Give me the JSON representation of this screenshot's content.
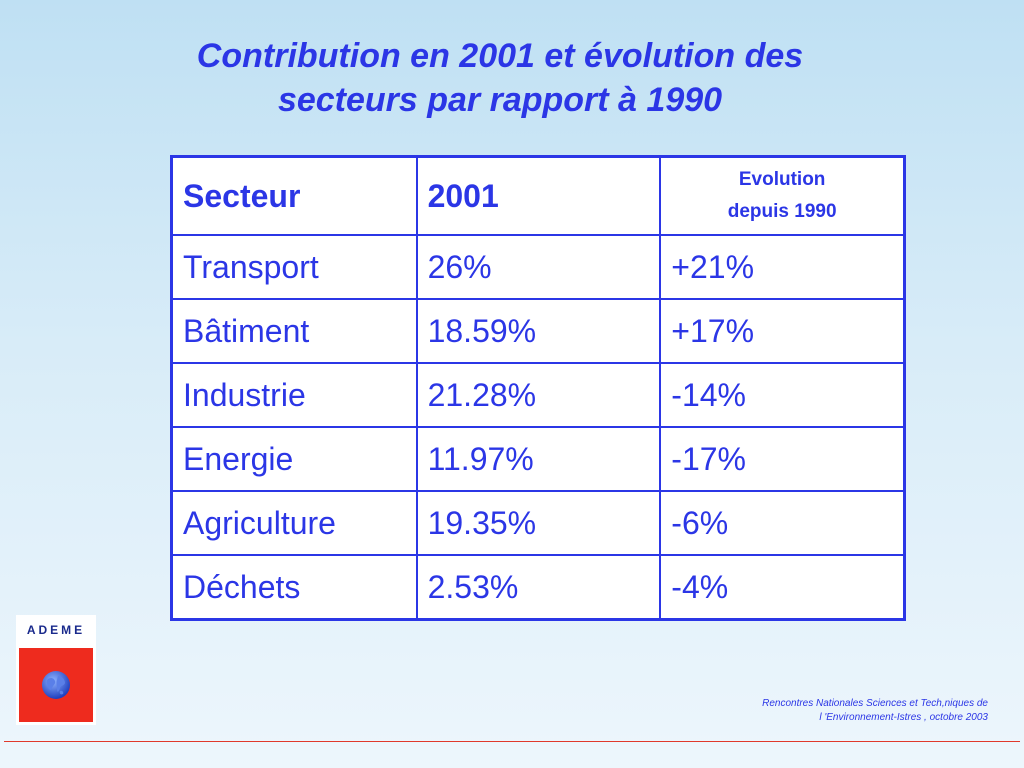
{
  "title": {
    "line1": "Contribution en 2001 et évolution des",
    "line2": "secteurs par rapport à 1990"
  },
  "table": {
    "headers": {
      "sector": "Secteur",
      "year": "2001",
      "evolution_line1": "Evolution",
      "evolution_line2": "depuis 1990"
    },
    "rows": [
      {
        "sector": "Transport",
        "share_2001": "26%",
        "evolution": "+21%"
      },
      {
        "sector": "Bâtiment",
        "share_2001": "18.59%",
        "evolution": "+17%"
      },
      {
        "sector": "Industrie",
        "share_2001": "21.28%",
        "evolution": "-14%"
      },
      {
        "sector": "Energie",
        "share_2001": "11.97%",
        "evolution": "-17%"
      },
      {
        "sector": "Agriculture",
        "share_2001": "19.35%",
        "evolution": "-6%"
      },
      {
        "sector": "Déchets",
        "share_2001": "2.53%",
        "evolution": "-4%"
      }
    ]
  },
  "logo": {
    "text": "ADEME",
    "icon": "globe-icon"
  },
  "footer": {
    "line1": "Rencontres Nationales Sciences et Tech,niques de",
    "line2": "l 'Environnement-Istres , octobre  2003"
  },
  "colors": {
    "accent": "#2b36e6",
    "logo_red": "#ee2b1e",
    "footer_line": "#e0392b"
  }
}
